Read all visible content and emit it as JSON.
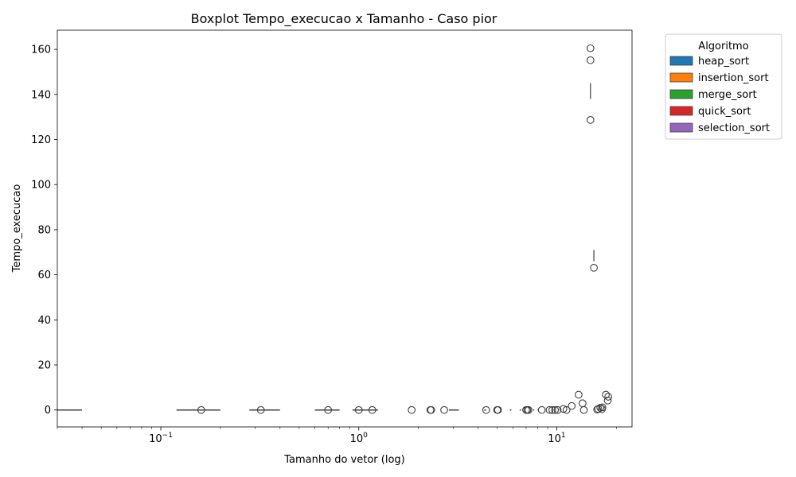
{
  "chart_data": {
    "type": "box",
    "title": "Boxplot Tempo_execucao x Tamanho - Caso pior",
    "xlabel": "Tamanho do vetor (log)",
    "ylabel": "Tempo_execucao",
    "xscale": "log",
    "xlim": [
      0.03,
      24
    ],
    "ylim": [
      -7.5,
      168.5
    ],
    "xticks": [
      {
        "value": 0.1,
        "base": "10",
        "exp": "−1"
      },
      {
        "value": 1,
        "base": "10",
        "exp": "0"
      },
      {
        "value": 10,
        "base": "10",
        "exp": "1"
      }
    ],
    "yticks": [
      0,
      20,
      40,
      60,
      80,
      100,
      120,
      140,
      160
    ],
    "grid": false,
    "legend": {
      "title": "Algoritmo",
      "placement": "outside-top-right",
      "entries": [
        {
          "name": "heap_sort",
          "color": "#1f77b4"
        },
        {
          "name": "insertion_sort",
          "color": "#ff7f0e"
        },
        {
          "name": "merge_sort",
          "color": "#2ca02c"
        },
        {
          "name": "quick_sort",
          "color": "#d62728"
        },
        {
          "name": "selection_sort",
          "color": "#9467bd"
        }
      ]
    },
    "box_bands": [
      {
        "x0": 0.03,
        "x1": 0.04
      },
      {
        "x0": 0.12,
        "x1": 0.2
      },
      {
        "x0": 0.28,
        "x1": 0.4
      },
      {
        "x0": 0.6,
        "x1": 0.8
      },
      {
        "x0": 0.93,
        "x1": 1.25
      },
      {
        "x0": 2.85,
        "x1": 3.2
      },
      {
        "x0": 4.3,
        "x1": 4.4
      },
      {
        "x0": 5.8,
        "x1": 5.9
      },
      {
        "x0": 6.5,
        "x1": 6.6
      },
      {
        "x0": 7.6,
        "x1": 7.7
      },
      {
        "x0": 8.0,
        "x1": 8.1
      }
    ],
    "whiskers": [
      {
        "x": 14.8,
        "y0": 138,
        "y1": 145
      },
      {
        "x": 15.4,
        "y0": 66,
        "y1": 71
      }
    ],
    "outliers": [
      {
        "x": 14.8,
        "y": 160.5
      },
      {
        "x": 14.8,
        "y": 155.2
      },
      {
        "x": 14.8,
        "y": 128.7
      },
      {
        "x": 15.4,
        "y": 63.1
      },
      {
        "x": 12.9,
        "y": 6.8
      },
      {
        "x": 13.5,
        "y": 3.0
      },
      {
        "x": 11.9,
        "y": 1.8
      },
      {
        "x": 17.7,
        "y": 6.8
      },
      {
        "x": 18.2,
        "y": 5.9
      },
      {
        "x": 18.1,
        "y": 4.2
      },
      {
        "x": 17.0,
        "y": 1.2
      },
      {
        "x": 16.6,
        "y": 1.0
      },
      {
        "x": 16.9,
        "y": 0.4
      },
      {
        "x": 16.2,
        "y": 0.5
      },
      {
        "x": 16.0,
        "y": 0.2
      },
      {
        "x": 10.8,
        "y": 0.5
      },
      {
        "x": 0.16,
        "y": 0
      },
      {
        "x": 0.32,
        "y": 0
      },
      {
        "x": 0.7,
        "y": 0
      },
      {
        "x": 1.0,
        "y": 0
      },
      {
        "x": 1.17,
        "y": 0
      },
      {
        "x": 1.85,
        "y": 0
      },
      {
        "x": 2.3,
        "y": 0
      },
      {
        "x": 2.32,
        "y": 0
      },
      {
        "x": 2.7,
        "y": 0
      },
      {
        "x": 4.4,
        "y": 0
      },
      {
        "x": 5.0,
        "y": 0
      },
      {
        "x": 5.05,
        "y": 0
      },
      {
        "x": 7.0,
        "y": 0
      },
      {
        "x": 7.1,
        "y": 0
      },
      {
        "x": 7.2,
        "y": 0
      },
      {
        "x": 8.4,
        "y": 0
      },
      {
        "x": 9.2,
        "y": 0
      },
      {
        "x": 9.5,
        "y": 0
      },
      {
        "x": 9.8,
        "y": 0
      },
      {
        "x": 10.1,
        "y": 0
      },
      {
        "x": 11.2,
        "y": 0
      },
      {
        "x": 13.7,
        "y": 0
      }
    ]
  }
}
